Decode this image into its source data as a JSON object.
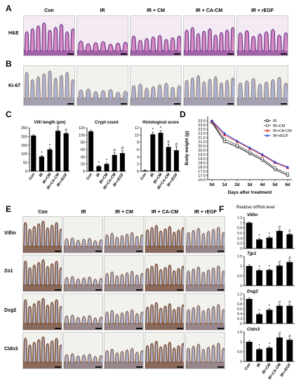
{
  "panels": {
    "A": "A",
    "B": "B",
    "C": "C",
    "D": "D",
    "E": "E",
    "F": "F"
  },
  "groups": [
    "Con",
    "IR",
    "IR + CM",
    "IR + CA-CM",
    "IR + rEGF"
  ],
  "row_labels": {
    "he": "H&E",
    "ki67": "Ki-67"
  },
  "e_rows": [
    "Villin",
    "Zo1",
    "Dsg2",
    "Cldn3"
  ],
  "colors": {
    "he_bg": "#f3eaf3",
    "he_pink": "#d88ac0",
    "he_purple": "#6a3a8e",
    "ihc_bg": "#f1f1ee",
    "ihc_blue": "#a9b0cf",
    "ihc_brown": "#7a4a2a"
  },
  "chart_data": [
    {
      "type": "bar",
      "title": "Villi length (μm)",
      "categories": [
        "Con",
        "IR",
        "IR+CM",
        "IR+CA-CM",
        "IR+rEGF"
      ],
      "values": [
        205,
        85,
        125,
        232,
        218
      ],
      "errors": [
        5,
        6,
        8,
        6,
        5
      ],
      "ylim": [
        0,
        250
      ],
      "yticks": [
        0,
        50,
        100,
        150,
        200,
        250
      ],
      "marks": [
        "",
        "*",
        "*",
        "#",
        "#"
      ]
    },
    {
      "type": "bar",
      "title": "Crypt count",
      "categories": [
        "Con",
        "IR",
        "IR+CM",
        "IR+CA-CM",
        "IR+rEGF"
      ],
      "values": [
        110,
        14,
        20,
        45,
        50
      ],
      "errors": [
        3,
        2,
        3,
        6,
        7
      ],
      "ylim": [
        0,
        120
      ],
      "yticks": [
        0,
        20,
        40,
        60,
        80,
        100,
        120
      ],
      "marks": [
        "",
        "*",
        "*",
        "#",
        "#"
      ]
    },
    {
      "type": "bar",
      "title": "Histological score",
      "categories": [
        "Con",
        "IR",
        "IR+CM",
        "IR+CA-CM",
        "IR+rEGF"
      ],
      "values": [
        0.2,
        10.2,
        10.6,
        6.7,
        5.8
      ],
      "errors": [
        0.2,
        0.6,
        0.6,
        0.8,
        1
      ],
      "ylim": [
        0,
        12
      ],
      "yticks": [
        0,
        2,
        4,
        6,
        8,
        10,
        12
      ],
      "marks": [
        "",
        "*",
        "*",
        "#",
        "#"
      ]
    },
    {
      "type": "line",
      "ylabel": "Body weight (g)",
      "xlabel": "Days after treatment",
      "x": [
        "0d",
        "1d",
        "2d",
        "3d",
        "4d",
        "5d",
        "6d"
      ],
      "ylim": [
        16.5,
        24
      ],
      "yticks": [
        16.5,
        17,
        17.5,
        18,
        18.5,
        19,
        19.5,
        20,
        20.5,
        21,
        21.5,
        22,
        22.5,
        23,
        23.5
      ],
      "series": [
        {
          "name": "IR",
          "color": "#000000",
          "marker": "circle-open",
          "values": [
            23.3,
            21.0,
            20.4,
            19.6,
            18.8,
            17.7,
            17.0
          ]
        },
        {
          "name": "IR+CM",
          "color": "#555555",
          "marker": "square-open",
          "values": [
            23.4,
            21.3,
            20.6,
            19.8,
            19.0,
            17.9,
            17.2
          ]
        },
        {
          "name": "IR+CA-CM",
          "color": "#e02020",
          "marker": "triangle",
          "values": [
            23.4,
            21.8,
            21.0,
            20.2,
            19.4,
            18.5,
            17.9
          ]
        },
        {
          "name": "IR+rEGF",
          "color": "#1f3fd6",
          "marker": "triangle",
          "values": [
            23.5,
            22.0,
            21.1,
            20.3,
            19.5,
            18.6,
            18.0
          ]
        }
      ]
    },
    {
      "type": "bar",
      "title": "Relative mRNA level",
      "gene": "Villin",
      "categories": [
        "Con",
        "IR",
        "IR+CM",
        "IR+CA-CM",
        "IR+rEGF"
      ],
      "values": [
        1.0,
        0.35,
        0.42,
        0.68,
        0.55
      ],
      "errors": [
        0.03,
        0.04,
        0.05,
        0.05,
        0.04
      ],
      "ylim": [
        0,
        1.2
      ],
      "yticks": [
        0,
        0.2,
        0.4,
        0.6,
        0.8,
        1.0,
        1.2
      ],
      "marks": [
        "",
        "*",
        "*",
        "#",
        "#"
      ]
    },
    {
      "type": "bar",
      "gene": "Tjp1",
      "categories": [
        "Con",
        "IR",
        "IR+CM",
        "IR+CA-CM",
        "IR+rEGF"
      ],
      "values": [
        1.0,
        0.78,
        0.8,
        1.02,
        1.2
      ],
      "errors": [
        0.05,
        0.05,
        0.04,
        0.06,
        0.08
      ],
      "ylim": [
        0,
        1.5
      ],
      "yticks": [
        0,
        0.5,
        1.0,
        1.5
      ],
      "marks": [
        "",
        "*",
        "*",
        "#",
        "#"
      ]
    },
    {
      "type": "bar",
      "gene": "Dsg2",
      "categories": [
        "Con",
        "IR",
        "IR+CM",
        "IR+CA-CM",
        "IR+rEGF"
      ],
      "values": [
        1.0,
        0.38,
        0.56,
        0.72,
        0.72
      ],
      "errors": [
        0.04,
        0.04,
        0.05,
        0.05,
        0.05
      ],
      "ylim": [
        0,
        1.2
      ],
      "yticks": [
        0,
        0.2,
        0.4,
        0.6,
        0.8,
        1.0,
        1.2
      ],
      "marks": [
        "",
        "*",
        "*",
        "#",
        "#"
      ]
    },
    {
      "type": "bar",
      "gene": "Cldn3",
      "categories": [
        "Con",
        "IR",
        "IR+CM",
        "IR+CA-CM",
        "IR+rEGF"
      ],
      "values": [
        1.0,
        0.62,
        0.7,
        1.22,
        1.1
      ],
      "errors": [
        0.05,
        0.05,
        0.05,
        0.08,
        0.06
      ],
      "ylim": [
        0,
        1.5
      ],
      "yticks": [
        0,
        0.5,
        1.0,
        1.5
      ],
      "marks": [
        "",
        "*",
        "*",
        "#",
        "#"
      ]
    }
  ]
}
